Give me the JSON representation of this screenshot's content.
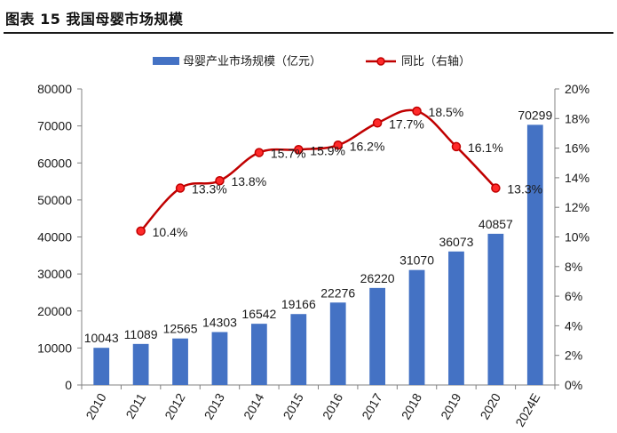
{
  "figure_title": "图表 15 我国母婴市场规模",
  "colors": {
    "bar": "#4472C4",
    "line": "#C00000",
    "marker_fill": "#FF2A2A",
    "axis": "#808080",
    "text": "#1a1a1a"
  },
  "chart_data": {
    "type": "bar+line",
    "categories": [
      "2010",
      "2011",
      "2012",
      "2013",
      "2014",
      "2015",
      "2016",
      "2017",
      "2018",
      "2019",
      "2020",
      "2024E"
    ],
    "series": [
      {
        "name": "母婴产业市场规模（亿元）",
        "type": "bar",
        "axis": "left",
        "values": [
          10043,
          11089,
          12565,
          14303,
          16542,
          19166,
          22276,
          26220,
          31070,
          36073,
          40857,
          70299
        ],
        "labels": [
          "10043",
          "11089",
          "12565",
          "14303",
          "16542",
          "19166",
          "22276",
          "26220",
          "31070",
          "36073",
          "40857",
          "70299"
        ]
      },
      {
        "name": "同比（右轴）",
        "type": "line",
        "axis": "right",
        "values": [
          null,
          10.4,
          13.3,
          13.8,
          15.7,
          15.9,
          16.2,
          17.7,
          18.5,
          16.1,
          13.3,
          null
        ],
        "labels": [
          "",
          "10.4%",
          "13.3%",
          "13.8%",
          "15.7%",
          "15.9%",
          "16.2%",
          "17.7%",
          "18.5%",
          "16.1%",
          "13.3%",
          ""
        ]
      }
    ],
    "y_left": {
      "min": 0,
      "max": 80000,
      "ticks": [
        "0",
        "10000",
        "20000",
        "30000",
        "40000",
        "50000",
        "60000",
        "70000",
        "80000"
      ]
    },
    "y_right": {
      "min": 0,
      "max": 20,
      "ticks": [
        "0%",
        "2%",
        "4%",
        "6%",
        "8%",
        "10%",
        "12%",
        "14%",
        "16%",
        "18%",
        "20%"
      ]
    },
    "legend_position": "top",
    "grid": false
  }
}
